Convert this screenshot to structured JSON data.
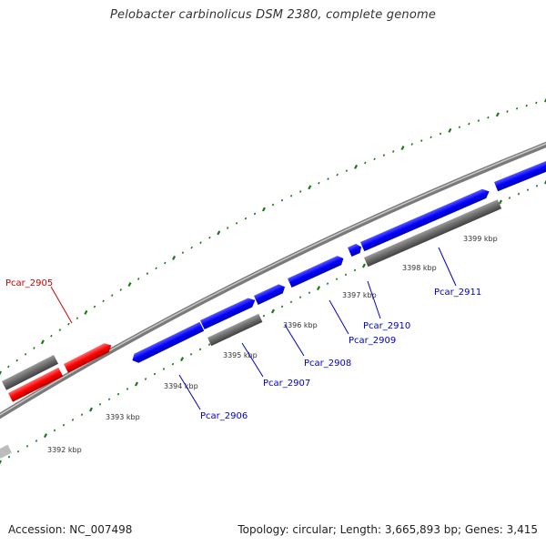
{
  "title": "Pelobacter carbinolicus DSM 2380, complete genome",
  "footer": {
    "accession": "Accession: NC_007498",
    "summary": "Topology: circular; Length: 3,665,893 bp; Genes: 3,415"
  },
  "colors": {
    "backbone": "#7a7a7a",
    "tick_dots": "#1a7a1a",
    "highlight_gene": "#ff0000",
    "label_highlight": "#cc0000",
    "gene_blue": "#0000ff",
    "label_blue": "#0000cc",
    "gene_gray": "#666666"
  },
  "scale_labels": [
    "3392 kbp",
    "3393 kbp",
    "3394 kbp",
    "3395 kbp",
    "3396 kbp",
    "3397 kbp",
    "3398 kbp",
    "3399 kbp"
  ],
  "gene_labels": [
    {
      "text": "Pcar_2905",
      "color": "red"
    },
    {
      "text": "Pcar_2906",
      "color": "blue"
    },
    {
      "text": "Pcar_2907",
      "color": "blue"
    },
    {
      "text": "Pcar_2908",
      "color": "blue"
    },
    {
      "text": "Pcar_2909",
      "color": "blue"
    },
    {
      "text": "Pcar_2910",
      "color": "blue"
    },
    {
      "text": "Pcar_2911",
      "color": "blue"
    }
  ]
}
